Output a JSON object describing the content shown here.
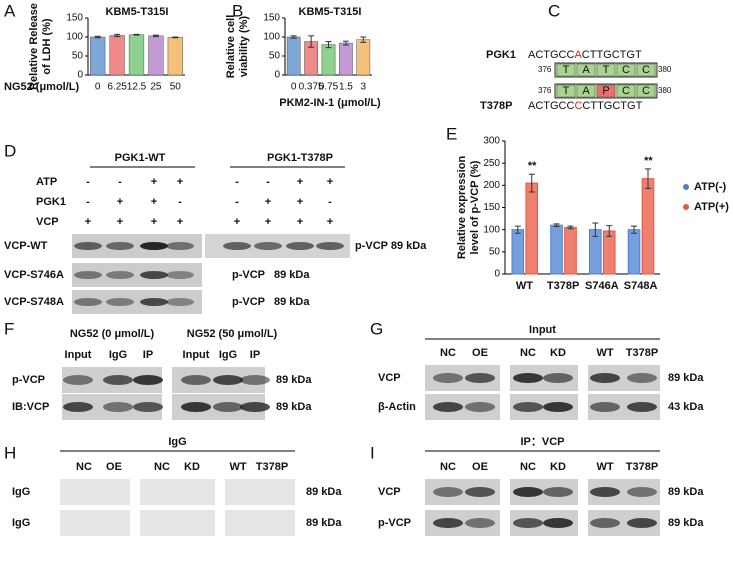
{
  "panel_labels": [
    "A",
    "B",
    "C",
    "D",
    "E",
    "F",
    "G",
    "H",
    "I"
  ],
  "chart_data": [
    {
      "type": "bar",
      "title": "KBM5-T315I",
      "ylabel": [
        "Relative Release",
        "of LDH (%)"
      ],
      "xlabel": "NG52 (μmol/L)",
      "categories": [
        "0",
        "6.25",
        "12.5",
        "25",
        "50"
      ],
      "values": [
        100,
        104,
        106,
        103,
        99
      ],
      "errors": [
        2,
        3,
        1,
        2,
        1
      ],
      "colors": [
        "#7ea6d8",
        "#f08a8a",
        "#8fd18f",
        "#c49ad6",
        "#f5c07a"
      ],
      "ylim": [
        0,
        150
      ],
      "yticks": [
        0,
        50,
        100,
        150
      ]
    },
    {
      "type": "bar",
      "title": "KBM5-T315I",
      "ylabel": [
        "Relative cell",
        "viability (%)"
      ],
      "xlabel": "PKM2-IN-1 (μmol/L)",
      "categories": [
        "0",
        "0.375",
        "0.75",
        "1.5",
        "3"
      ],
      "values": [
        100,
        88,
        80,
        84,
        93
      ],
      "errors": [
        3,
        15,
        8,
        5,
        7
      ],
      "colors": [
        "#7ea6d8",
        "#f08a8a",
        "#8fd18f",
        "#c49ad6",
        "#f5c07a"
      ],
      "ylim": [
        0,
        150
      ],
      "yticks": [
        0,
        50,
        100,
        150
      ]
    },
    {
      "type": "grouped-bar",
      "ylabel": [
        "Relative expression",
        "level of p-VCP (%)"
      ],
      "categories": [
        "WT",
        "T378P",
        "S746A",
        "S748A"
      ],
      "series": [
        {
          "name": "ATP(-)",
          "color": "#4a7fd1",
          "values": [
            100,
            110,
            100,
            100
          ],
          "errors": [
            8,
            3,
            15,
            8
          ]
        },
        {
          "name": "ATP(+)",
          "color": "#e8553f",
          "values": [
            205,
            105,
            97,
            215
          ],
          "errors": [
            20,
            3,
            12,
            22
          ]
        }
      ],
      "annotations": [
        "**",
        null,
        null,
        "**"
      ],
      "ylim": [
        0,
        300
      ],
      "yticks": [
        0,
        50,
        100,
        150,
        200,
        250,
        300
      ]
    }
  ],
  "panel_c": {
    "rows": [
      {
        "name": "PGK1",
        "seq": [
          "ACTGCC",
          "A",
          "CTTGCTGT"
        ]
      },
      {
        "name": "T378P",
        "seq": [
          "ACTGCC",
          "C",
          "CTTGCTGT"
        ]
      }
    ],
    "boxes": [
      [
        "376",
        "T",
        "A",
        "T",
        "C",
        "C",
        "380"
      ],
      [
        "376",
        "T",
        "A",
        "P",
        "C",
        "C",
        "380"
      ]
    ]
  },
  "panel_d": {
    "groups": [
      "PGK1-WT",
      "PGK1-T378P"
    ],
    "conditions": [
      {
        "name": "ATP",
        "signs": [
          "-",
          "-",
          "+",
          "+",
          "-",
          "-",
          "+",
          "+"
        ]
      },
      {
        "name": "PGK1",
        "signs": [
          "-",
          "+",
          "+",
          "-",
          "-",
          "+",
          "+",
          "-"
        ]
      },
      {
        "name": "VCP",
        "signs": [
          "+",
          "+",
          "+",
          "+",
          "+",
          "+",
          "+",
          "+"
        ]
      }
    ],
    "blots": [
      {
        "name": "VCP-WT",
        "right": "p-VCP 89 kDa"
      },
      {
        "name": "VCP-S746A",
        "right": "p-VCP   89 kDa"
      },
      {
        "name": "VCP-S748A",
        "right": "p-VCP   89 kDa"
      }
    ]
  },
  "panel_f": {
    "groups": [
      "NG52 (0 μmol/L)",
      "NG52 (50 μmol/L)"
    ],
    "lanes": [
      "Input",
      "IgG",
      "IP",
      "Input",
      "IgG",
      "IP"
    ],
    "rows": [
      {
        "name": "p-VCP",
        "kda": "89 kDa"
      },
      {
        "name": "IB:VCP",
        "kda": "89 kDa"
      }
    ]
  },
  "panel_g": {
    "title": "Input",
    "lanes": [
      "NC",
      "OE",
      "NC",
      "KD",
      "WT",
      "T378P"
    ],
    "rows": [
      {
        "name": "VCP",
        "kda": "89 kDa"
      },
      {
        "name": "β-Actin",
        "kda": "43 kDa"
      }
    ]
  },
  "panel_h": {
    "title": "IgG",
    "lanes": [
      "NC",
      "OE",
      "NC",
      "KD",
      "WT",
      "T378P"
    ],
    "rows": [
      {
        "name": "IgG",
        "kda": "89 kDa"
      },
      {
        "name": "IgG",
        "kda": "89 kDa"
      }
    ]
  },
  "panel_i": {
    "title": "IP：VCP",
    "lanes": [
      "NC",
      "OE",
      "NC",
      "KD",
      "WT",
      "T378P"
    ],
    "rows": [
      {
        "name": "VCP",
        "kda": "89 kDa"
      },
      {
        "name": "p-VCP",
        "kda": "89 kDa"
      }
    ]
  }
}
